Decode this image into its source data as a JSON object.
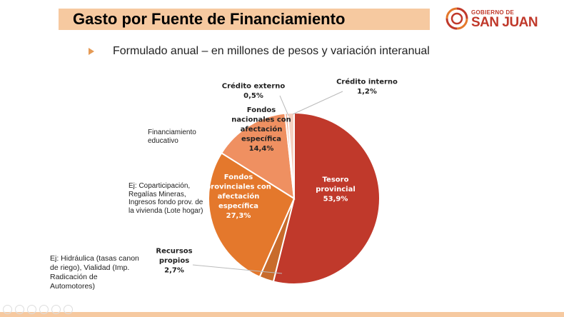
{
  "header": {
    "title": "Gasto por Fuente de Financiamiento",
    "subtitle": "Formulado anual – en millones de pesos y variación interanual"
  },
  "logo": {
    "top_text": "GOBIERNO DE",
    "main_text": "SAN JUAN",
    "color": "#c0392b"
  },
  "notes": {
    "educativo": "Financiamiento educativo",
    "coparticipacion": "Ej: Coparticipación, Regalías Mineras, Ingresos fondo prov. de la vivienda (Lote hogar)",
    "hidraulica": "Ej: Hidráulica (tasas canon de riego), Vialidad (Imp. Radicación de Automotores)"
  },
  "chart_data": {
    "type": "pie",
    "slices": [
      {
        "label_lines": [
          "Tesoro",
          "provincial",
          "53,9%"
        ],
        "value": 53.9,
        "color": "#c0392b"
      },
      {
        "label_lines": [
          "Recursos",
          "propios",
          "2,7%"
        ],
        "value": 2.7,
        "color": "#c86b2c"
      },
      {
        "label_lines": [
          "Fondos",
          "provinciales con",
          "afectación",
          "específica",
          "27,3%"
        ],
        "value": 27.3,
        "color": "#e4782c"
      },
      {
        "label_lines": [
          "Fondos",
          "nacionales con",
          "afectación",
          "específica",
          "14,4%"
        ],
        "value": 14.4,
        "color": "#ef9061"
      },
      {
        "label_lines": [
          "Crédito externo",
          "0,5%"
        ],
        "value": 0.5,
        "color": "#f3b29a"
      },
      {
        "label_lines": [
          "Crédito interno",
          "1,2%"
        ],
        "value": 1.2,
        "color": "#f5cfc0"
      }
    ]
  }
}
